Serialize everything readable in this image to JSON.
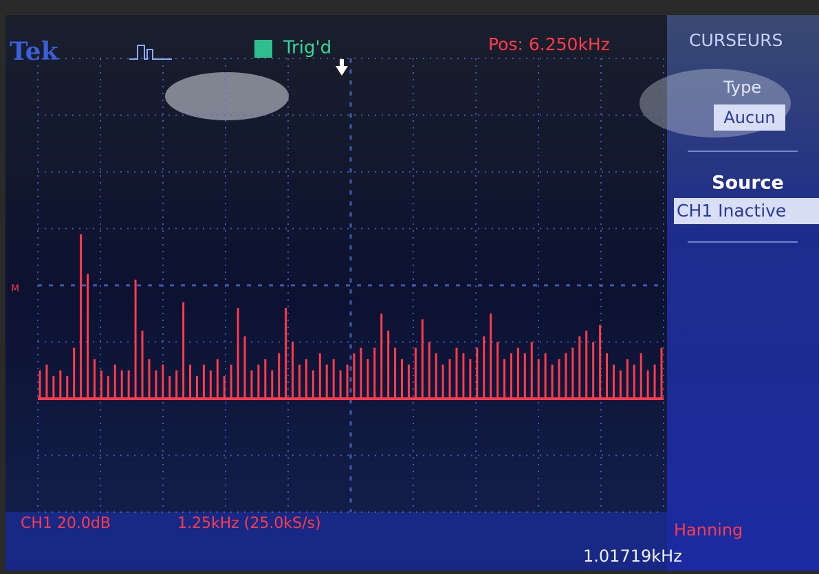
{
  "header": {
    "logo": "Tek",
    "trigger_status": "Trig'd",
    "position": "Pos: 6.250kHz"
  },
  "menu": {
    "title": "CURSEURS",
    "type_label": "Type",
    "type_value": "Aucun",
    "source_label": "Source",
    "source_value": "CH1 Inactive"
  },
  "footer": {
    "channel_scale": "CH1 20.0dB",
    "frequency_span": "1.25kHz (25.0kS/s)",
    "window": "Hanning",
    "readout": "1.01719kHz"
  },
  "reference_marker": "M",
  "spectrum": {
    "color": "#ff3a4a",
    "floor": 2.0,
    "values": [
      2.5,
      2.6,
      2.4,
      2.5,
      2.4,
      2.9,
      4.9,
      4.2,
      2.7,
      2.5,
      2.4,
      2.6,
      2.5,
      2.5,
      4.1,
      3.2,
      2.7,
      2.5,
      2.6,
      2.4,
      2.5,
      3.7,
      2.6,
      2.4,
      2.6,
      2.5,
      2.7,
      2.4,
      2.6,
      3.6,
      3.1,
      2.5,
      2.6,
      2.7,
      2.5,
      2.8,
      3.6,
      3.0,
      2.6,
      2.7,
      2.5,
      2.8,
      2.6,
      2.7,
      2.5,
      2.6,
      2.8,
      2.9,
      2.7,
      2.9,
      3.5,
      3.2,
      2.9,
      2.7,
      2.6,
      2.9,
      3.4,
      3.0,
      2.8,
      2.6,
      2.7,
      2.9,
      2.8,
      2.7,
      2.9,
      3.1,
      3.5,
      3.0,
      2.7,
      2.8,
      2.9,
      2.8,
      3.0,
      2.7,
      2.8,
      2.6,
      2.7,
      2.8,
      2.9,
      3.1,
      3.2,
      3.0,
      3.3,
      2.8,
      2.6,
      2.5,
      2.7,
      2.6,
      2.8,
      2.5,
      2.6,
      2.9
    ]
  }
}
